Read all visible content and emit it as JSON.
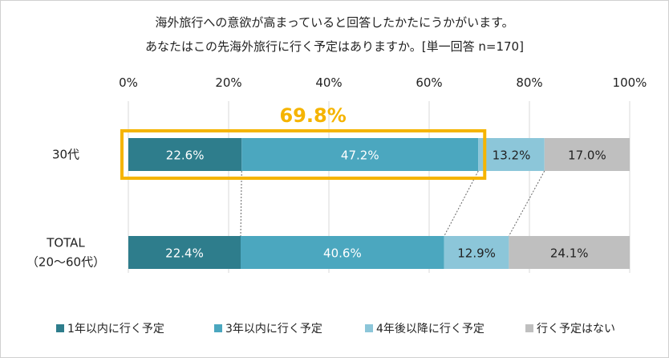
{
  "chart_data": {
    "type": "bar",
    "orientation": "horizontal",
    "stacked": true,
    "title_lines": [
      "海外旅行への意欲が高まっていると回答したかたにうかがいます。",
      "あなたはこの先海外旅行に行く予定はありますか。[単一回答 n=170]"
    ],
    "categories": [
      [
        "30代"
      ],
      [
        "TOTAL",
        "（20～60代）"
      ]
    ],
    "series": [
      {
        "name": "1年以内に行く予定",
        "values": [
          22.6,
          22.4
        ],
        "labels": [
          "22.6%",
          "22.4%"
        ],
        "color": "#2E7D8C"
      },
      {
        "name": "3年以内に行く予定",
        "values": [
          47.2,
          40.6
        ],
        "labels": [
          "47.2%",
          "40.6%"
        ],
        "color": "#4BA7BF"
      },
      {
        "name": "4年後以降に行く予定",
        "values": [
          13.2,
          12.9
        ],
        "labels": [
          "13.2%",
          "12.9%"
        ],
        "color": "#8CC6D9"
      },
      {
        "name": "行く予定はない",
        "values": [
          17.0,
          24.1
        ],
        "labels": [
          "17.0%",
          "24.1%"
        ],
        "color": "#BFBFBF"
      }
    ],
    "xlim": [
      0,
      100
    ],
    "x_ticks": [
      "0%",
      "20%",
      "40%",
      "60%",
      "80%",
      "100%"
    ],
    "gridlines": true,
    "legend_position": "bottom",
    "highlight": {
      "category_index": 0,
      "series_count": 2,
      "label": "69.8%",
      "color": "#F5B400"
    },
    "label_colors": [
      "#ffffff",
      "#ffffff",
      "#222222",
      "#222222"
    ]
  }
}
